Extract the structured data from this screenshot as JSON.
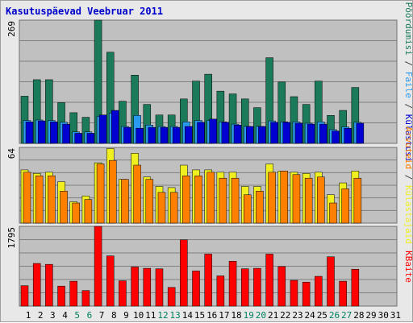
{
  "title": "Kasutuspäevad Veebruar 2011",
  "days": [
    "1",
    "2",
    "3",
    "4",
    "5",
    "6",
    "7",
    "8",
    "9",
    "10",
    "11",
    "12",
    "13",
    "14",
    "15",
    "16",
    "17",
    "18",
    "19",
    "20",
    "21",
    "22",
    "23",
    "24",
    "25",
    "26",
    "27",
    "28",
    "29",
    "30",
    "31"
  ],
  "weekend_days": [
    5,
    6,
    12,
    13,
    19,
    20,
    26,
    27
  ],
  "colors": {
    "background": "#e8e8e8",
    "plot": "#c0c0c0",
    "gridline": "#808080",
    "weekday_label": "#000000",
    "weekend_label": "#008060",
    "pages": "#1a7a5a",
    "files": "#2a9af0",
    "visits": "#0000d0",
    "hosts": "#ff8000",
    "visitors": "#f0f020",
    "kbytes": "#ff0000",
    "separator_text": "#404040"
  },
  "chart_data": {
    "type": "bar",
    "title": "Kasutuspäevad Veebruar 2011",
    "categories": [
      "1",
      "2",
      "3",
      "4",
      "5",
      "6",
      "7",
      "8",
      "9",
      "10",
      "11",
      "12",
      "13",
      "14",
      "15",
      "16",
      "17",
      "18",
      "19",
      "20",
      "21",
      "22",
      "23",
      "24",
      "25",
      "26",
      "27",
      "28"
    ],
    "panels": [
      {
        "id": "top",
        "ymax_label": "269",
        "ymax": 269,
        "axis_label_parts": [
          {
            "text": "Pöördumisi",
            "color": "#1a7a5a"
          },
          {
            "text": " / ",
            "color": "#404040"
          },
          {
            "text": "Faile",
            "color": "#2a9af0"
          },
          {
            "text": " / ",
            "color": "#404040"
          },
          {
            "text": "Külastusi",
            "color": "#0000d0"
          }
        ],
        "series": [
          {
            "name": "Pöördumisi",
            "color": "#1a7a5a",
            "values": [
              103,
              139,
              139,
              89,
              67,
              57,
              269,
              199,
              92,
              149,
              85,
              62,
              62,
              97,
              136,
              151,
              114,
              108,
              97,
              78,
              187,
              134,
              102,
              85,
              136,
              61,
              72,
              122
            ]
          },
          {
            "name": "Faile",
            "color": "#2a9af0",
            "values": [
              50,
              51,
              50,
              46,
              25,
              25,
              59,
              66,
              37,
              61,
              40,
              37,
              37,
              47,
              50,
              50,
              47,
              42,
              37,
              37,
              49,
              47,
              47,
              44,
              47,
              30,
              36,
              46
            ]
          },
          {
            "name": "Külastusi",
            "color": "#0000d0",
            "values": [
              47,
              49,
              47,
              42,
              22,
              22,
              62,
              72,
              35,
              33,
              35,
              35,
              35,
              37,
              46,
              53,
              46,
              40,
              37,
              37,
              46,
              46,
              44,
              42,
              42,
              27,
              33,
              44
            ]
          }
        ]
      },
      {
        "id": "middle",
        "ymax_label": "64",
        "ymax": 64,
        "axis_label_parts": [
          {
            "text": "Arvuteid",
            "color": "#ff8000"
          },
          {
            "text": " / ",
            "color": "#404040"
          },
          {
            "text": "Külastajaid",
            "color": "#f0f020"
          }
        ],
        "series": [
          {
            "name": "Külastajaid",
            "color": "#f0f020",
            "values": [
              45,
              42,
              43,
              35,
              18,
              23,
              51,
              63,
              37,
              59,
              39,
              31,
              30,
              49,
              45,
              45,
              43,
              43,
              31,
              31,
              50,
              44,
              43,
              42,
              43,
              24,
              34,
              44
            ]
          },
          {
            "name": "Arvuteid",
            "color": "#ff8000",
            "values": [
              43,
              40,
              40,
              27,
              17,
              20,
              50,
              53,
              37,
              49,
              37,
              26,
              26,
              40,
              40,
              43,
              38,
              38,
              24,
              27,
              43,
              44,
              41,
              38,
              39,
              17,
              29,
              38
            ]
          }
        ]
      },
      {
        "id": "bottom",
        "ymax_label": "1795",
        "ymax": 1795,
        "axis_label_parts": [
          {
            "text": "KBaite",
            "color": "#ff0000"
          }
        ],
        "series": [
          {
            "name": "KBaite",
            "color": "#ff0000",
            "values": [
              460,
              960,
              940,
              450,
              560,
              350,
              1795,
              1130,
              570,
              880,
              850,
              840,
              420,
              1490,
              790,
              1170,
              680,
              1010,
              840,
              850,
              1170,
              890,
              580,
              540,
              670,
              1110,
              560,
              830
            ]
          }
        ]
      }
    ]
  }
}
